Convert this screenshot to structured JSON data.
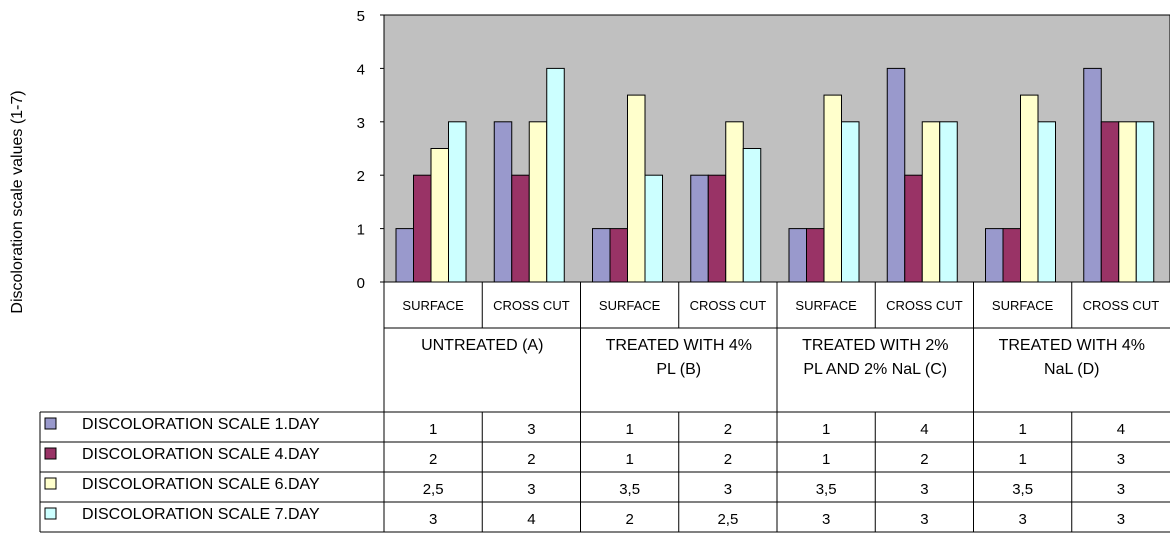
{
  "chart_data": {
    "type": "bar",
    "ylabel": "Discoloration scale values (1-7)",
    "ylim": [
      0,
      5
    ],
    "yticks": [
      0,
      1,
      2,
      3,
      4,
      5
    ],
    "groups": [
      {
        "label": "UNTREATED (A)",
        "label_lines": [
          "UNTREATED (A)"
        ]
      },
      {
        "label": "TREATED WITH 4% PL (B)",
        "label_lines": [
          "TREATED WITH 4%",
          "PL (B)"
        ]
      },
      {
        "label": "TREATED WITH 2% PL AND 2% NaL (C)",
        "label_lines": [
          "TREATED WITH 2%",
          "PL AND 2% NaL (C)"
        ]
      },
      {
        "label": "TREATED WITH 4% NaL (D)",
        "label_lines": [
          "TREATED WITH 4%",
          "NaL (D)"
        ]
      }
    ],
    "categories": [
      "SURFACE",
      "CROSS CUT",
      "SURFACE",
      "CROSS CUT",
      "SURFACE",
      "CROSS CUT",
      "SURFACE",
      "CROSS CUT"
    ],
    "series": [
      {
        "name": "DISCOLORATION SCALE 1.DAY",
        "color": "#9999cc",
        "values": [
          1,
          3,
          1,
          2,
          1,
          4,
          1,
          4
        ],
        "labels": [
          "1",
          "3",
          "1",
          "2",
          "1",
          "4",
          "1",
          "4"
        ]
      },
      {
        "name": "DISCOLORATION SCALE 4.DAY",
        "color": "#993366",
        "values": [
          2,
          2,
          1,
          2,
          1,
          2,
          1,
          3
        ],
        "labels": [
          "2",
          "2",
          "1",
          "2",
          "1",
          "2",
          "1",
          "3"
        ]
      },
      {
        "name": "DISCOLORATION SCALE 6.DAY",
        "color": "#ffffcc",
        "values": [
          2.5,
          3,
          3.5,
          3,
          3.5,
          3,
          3.5,
          3
        ],
        "labels": [
          "2,5",
          "3",
          "3,5",
          "3",
          "3,5",
          "3",
          "3,5",
          "3"
        ]
      },
      {
        "name": "DISCOLORATION SCALE 7.DAY",
        "color": "#ccffff",
        "values": [
          3,
          4,
          2,
          2.5,
          3,
          3,
          3,
          3
        ],
        "labels": [
          "3",
          "4",
          "2",
          "2,5",
          "3",
          "3",
          "3",
          "3"
        ]
      }
    ],
    "plot_background": "#c0c0c0",
    "grid": false,
    "legend": "data-table"
  }
}
